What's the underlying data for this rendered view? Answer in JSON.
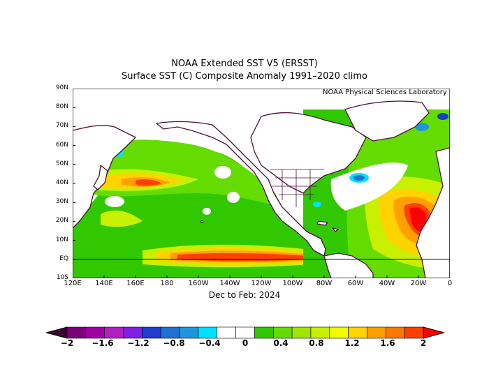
{
  "title": "NOAA Extended SST V5 (ERSST)",
  "subtitle": "Surface SST (C) Composite Anomaly 1991–2020 climo",
  "credit": "NOAA Physical Sciences Laboratory",
  "period": "Dec to Feb: 2024",
  "map": {
    "lon_range": [
      120,
      360
    ],
    "lat_range": [
      -10,
      90
    ],
    "lat_labels": [
      "90N",
      "80N",
      "70N",
      "60N",
      "50N",
      "40N",
      "30N",
      "20N",
      "10N",
      "EQ",
      "10S"
    ],
    "lon_labels": [
      "120E",
      "140E",
      "160E",
      "180",
      "160W",
      "140W",
      "120W",
      "100W",
      "80W",
      "60W",
      "40W",
      "20W",
      "0"
    ],
    "equator_line": true
  },
  "colorbar": {
    "labels": [
      "−2",
      "−1.6",
      "−1.2",
      "−0.8",
      "−0.4",
      "0",
      "0.4",
      "0.8",
      "1.2",
      "1.6",
      "2"
    ],
    "colors": [
      "#3a0030",
      "#7a007a",
      "#a000a0",
      "#b020c0",
      "#8020e0",
      "#1e3cd0",
      "#2070d0",
      "#1e96dc",
      "#00e0ff",
      "#ffffff",
      "#ffffff",
      "#32c800",
      "#64dc00",
      "#a0e600",
      "#c8f000",
      "#f0ff00",
      "#ffd200",
      "#ffa000",
      "#ff7800",
      "#ff4000",
      "#ff0000"
    ]
  }
}
